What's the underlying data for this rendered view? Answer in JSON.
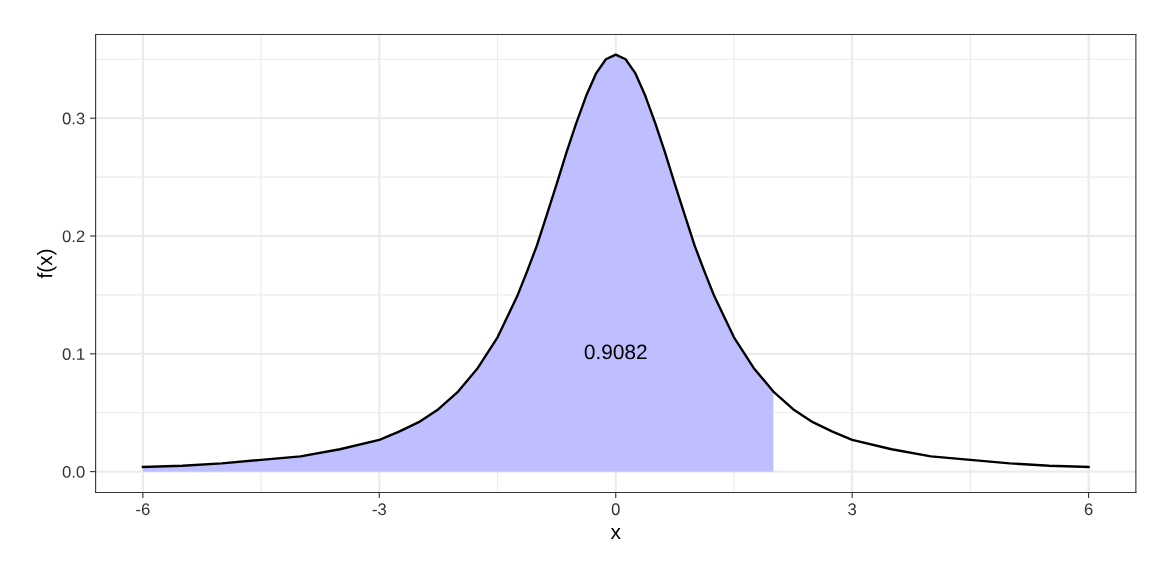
{
  "chart_data": {
    "type": "area",
    "xlabel": "x",
    "ylabel": "f(x)",
    "series": [
      {
        "color": "#bfbfff",
        "x": [
          -6,
          -5.5,
          -5,
          -4.5,
          -4,
          -3.5,
          -3,
          -2.75,
          -2.5,
          -2.25,
          -2,
          -1.75,
          -1.5,
          -1.25,
          -1.125,
          -1,
          -0.875,
          -0.75,
          -0.625,
          -0.5,
          -0.375,
          -0.25,
          -0.125,
          0,
          0.125,
          0.25,
          0.375,
          0.5,
          0.625,
          0.75,
          0.875,
          1,
          1.125,
          1.25,
          1.5,
          1.75,
          2
        ],
        "values": [
          0.004,
          0.005,
          0.007,
          0.01,
          0.013,
          0.019,
          0.027,
          0.034,
          0.042,
          0.053,
          0.068,
          0.088,
          0.114,
          0.149,
          0.17,
          0.192,
          0.218,
          0.244,
          0.271,
          0.296,
          0.319,
          0.338,
          0.35,
          0.354,
          0.35,
          0.338,
          0.319,
          0.296,
          0.271,
          0.244,
          0.218,
          0.192,
          0.17,
          0.149,
          0.114,
          0.088,
          0.068
        ]
      },
      {
        "type": "line",
        "color": "#000000",
        "x": [
          -6,
          -5.5,
          -5,
          -4.5,
          -4,
          -3.5,
          -3,
          -2.75,
          -2.5,
          -2.25,
          -2,
          -1.75,
          -1.5,
          -1.25,
          -1.125,
          -1,
          -0.875,
          -0.75,
          -0.625,
          -0.5,
          -0.375,
          -0.25,
          -0.125,
          0,
          0.125,
          0.25,
          0.375,
          0.5,
          0.625,
          0.75,
          0.875,
          1,
          1.125,
          1.25,
          1.5,
          1.75,
          2,
          2.25,
          2.5,
          2.75,
          3,
          3.5,
          4,
          4.5,
          5,
          5.5,
          6
        ],
        "values": [
          0.004,
          0.005,
          0.007,
          0.01,
          0.013,
          0.019,
          0.027,
          0.034,
          0.042,
          0.053,
          0.068,
          0.088,
          0.114,
          0.149,
          0.17,
          0.192,
          0.218,
          0.244,
          0.271,
          0.296,
          0.319,
          0.338,
          0.35,
          0.354,
          0.35,
          0.338,
          0.319,
          0.296,
          0.271,
          0.244,
          0.218,
          0.192,
          0.17,
          0.149,
          0.114,
          0.088,
          0.068,
          0.053,
          0.042,
          0.034,
          0.027,
          0.019,
          0.013,
          0.01,
          0.007,
          0.005,
          0.004
        ]
      }
    ],
    "annotations": [
      "0.9082"
    ],
    "xlim": [
      -6.6,
      6.6
    ],
    "xticks": [
      -6,
      -3,
      0,
      3,
      6
    ],
    "ylim": [
      -0.0177,
      0.371
    ],
    "yticks": [
      {
        "value": 0,
        "label": "0.0"
      },
      0.1,
      0.2,
      0.3
    ],
    "grid": true
  }
}
